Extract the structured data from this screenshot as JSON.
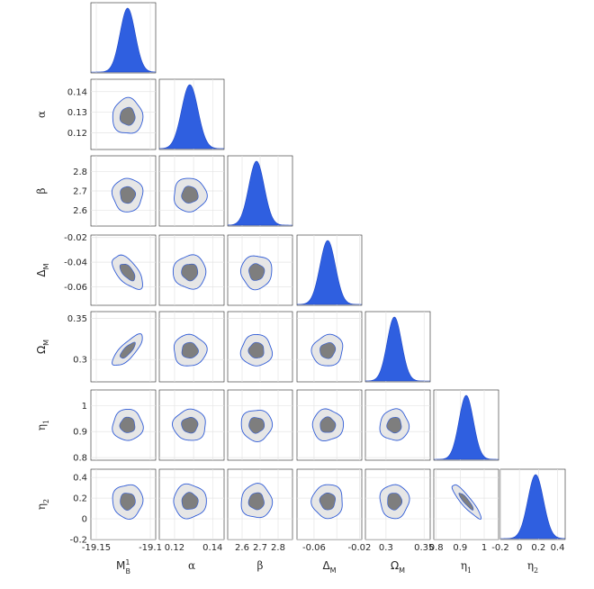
{
  "chart_data": {
    "type": "corner",
    "parameters": [
      {
        "key": "MB",
        "symbol": "M",
        "subscript": "B",
        "superscript": "1",
        "upright": true,
        "mean": -19.121,
        "sd": 0.007,
        "range": [
          -19.155,
          -19.095
        ],
        "ticks": [
          -19.15,
          -19.1
        ],
        "tick_labels": [
          "-19.15",
          "-19.1"
        ]
      },
      {
        "key": "alpha",
        "symbol": "α",
        "mean": 0.128,
        "sd": 0.0043,
        "range": [
          0.112,
          0.146
        ],
        "ticks": [
          0.12,
          0.13,
          0.14
        ],
        "tick_labels": [
          "0.12",
          "0.13",
          "0.14"
        ],
        "bottom_ticks": [
          0.12,
          0.14
        ],
        "bottom_tick_labels": [
          "0.12",
          "0.14"
        ]
      },
      {
        "key": "beta",
        "symbol": "β",
        "mean": 2.68,
        "sd": 0.043,
        "range": [
          2.52,
          2.88
        ],
        "ticks": [
          2.6,
          2.7,
          2.8
        ],
        "tick_labels": [
          "2.6",
          "2.7",
          "2.8"
        ]
      },
      {
        "key": "DeltaM",
        "symbol": "Δ",
        "subscript": "M",
        "upright": true,
        "mean": -0.048,
        "sd": 0.0068,
        "range": [
          -0.075,
          -0.018
        ],
        "ticks": [
          -0.06,
          -0.04,
          -0.02
        ],
        "tick_labels": [
          "-0.06",
          "-0.04",
          "-0.02"
        ],
        "bottom_ticks": [
          -0.06,
          -0.02
        ],
        "bottom_tick_labels": [
          "-0.06",
          "-0.02"
        ]
      },
      {
        "key": "OmegaM",
        "symbol": "Ω",
        "subscript": "M",
        "upright": true,
        "mean": 0.311,
        "sd": 0.0095,
        "range": [
          0.273,
          0.358
        ],
        "ticks": [
          0.3,
          0.35
        ],
        "tick_labels": [
          "0.3",
          "0.35"
        ]
      },
      {
        "key": "eta1",
        "symbol": "η",
        "subscript": "1",
        "mean": 0.925,
        "sd": 0.03,
        "range": [
          0.79,
          1.06
        ],
        "ticks": [
          0.8,
          0.9,
          1.0
        ],
        "tick_labels": [
          "0.8",
          "0.9",
          "1"
        ]
      },
      {
        "key": "eta2",
        "symbol": "η",
        "subscript": "2",
        "mean": 0.17,
        "sd": 0.082,
        "range": [
          -0.2,
          0.48
        ],
        "ticks": [
          -0.2,
          0,
          0.2,
          0.4
        ],
        "tick_labels": [
          "-0.2",
          "0",
          "0.2",
          "0.4"
        ]
      }
    ],
    "correlations": [
      {
        "i": 3,
        "j": 0,
        "rho": -0.6
      },
      {
        "i": 4,
        "j": 0,
        "rho": 0.78
      },
      {
        "i": 6,
        "j": 5,
        "rho": -0.9
      },
      {
        "i": 4,
        "j": 3,
        "rho": 0.1
      }
    ],
    "contour_levels_sigma": [
      1,
      2
    ],
    "grid": true,
    "colors": {
      "density": "#2f5fe0",
      "contour_line": "#2f5bd6",
      "inner_fill": "#7e7e7e",
      "outer_fill": "#e6e6e6"
    }
  }
}
